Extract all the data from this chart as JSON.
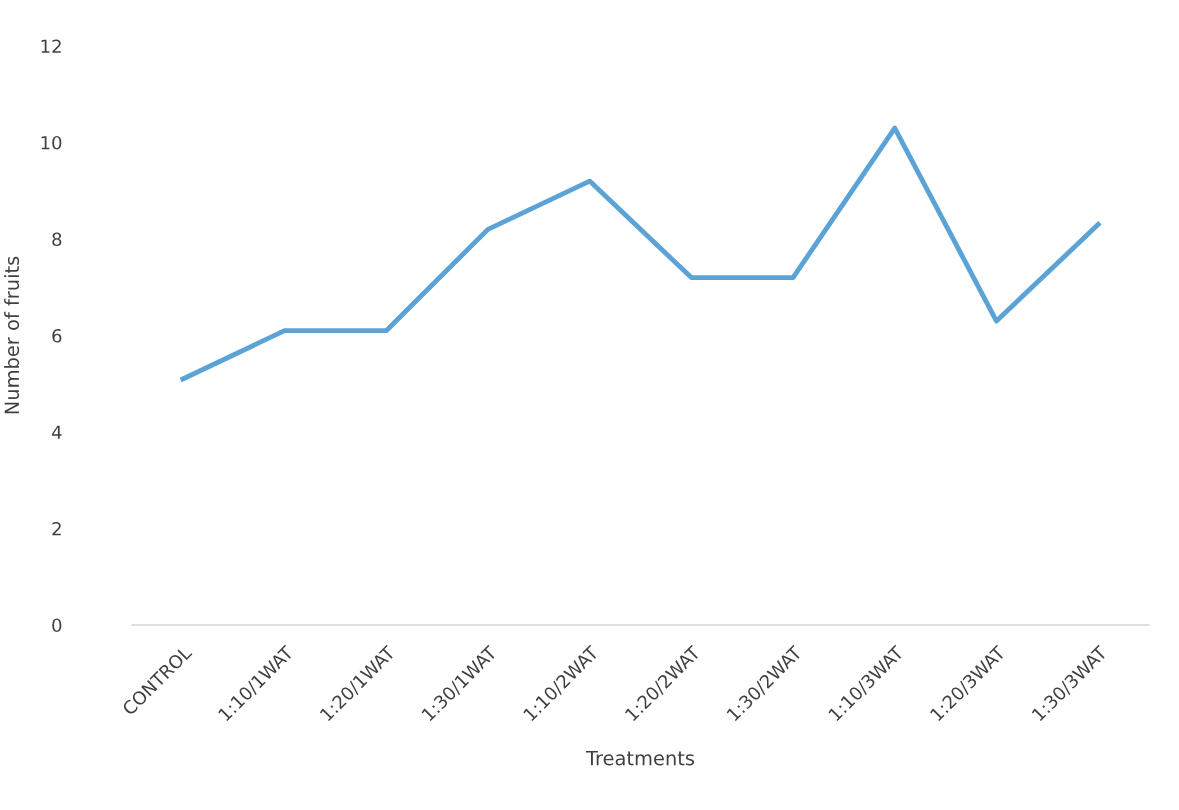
{
  "chart_data": {
    "type": "line",
    "xlabel": "Treatments",
    "ylabel": "Number of fruits",
    "categories": [
      "CONTROL",
      "1:10/1WAT",
      "1:20/1WAT",
      "1:30/1WAT",
      "1:10/2WAT",
      "1:20/2WAT",
      "1:30/2WAT",
      "1:10/3WAT",
      "1:20/3WAT",
      "1:30/3WAT"
    ],
    "series": [
      {
        "color": "#5ba3d6",
        "values": [
          5.1,
          6.1,
          6.1,
          8.2,
          9.2,
          7.2,
          7.2,
          10.3,
          6.3,
          8.3
        ]
      }
    ],
    "ylim": [
      0,
      12
    ],
    "yticks": [
      0,
      2,
      4,
      6,
      8,
      10,
      12
    ],
    "marker": "none",
    "line_style": "solid"
  }
}
